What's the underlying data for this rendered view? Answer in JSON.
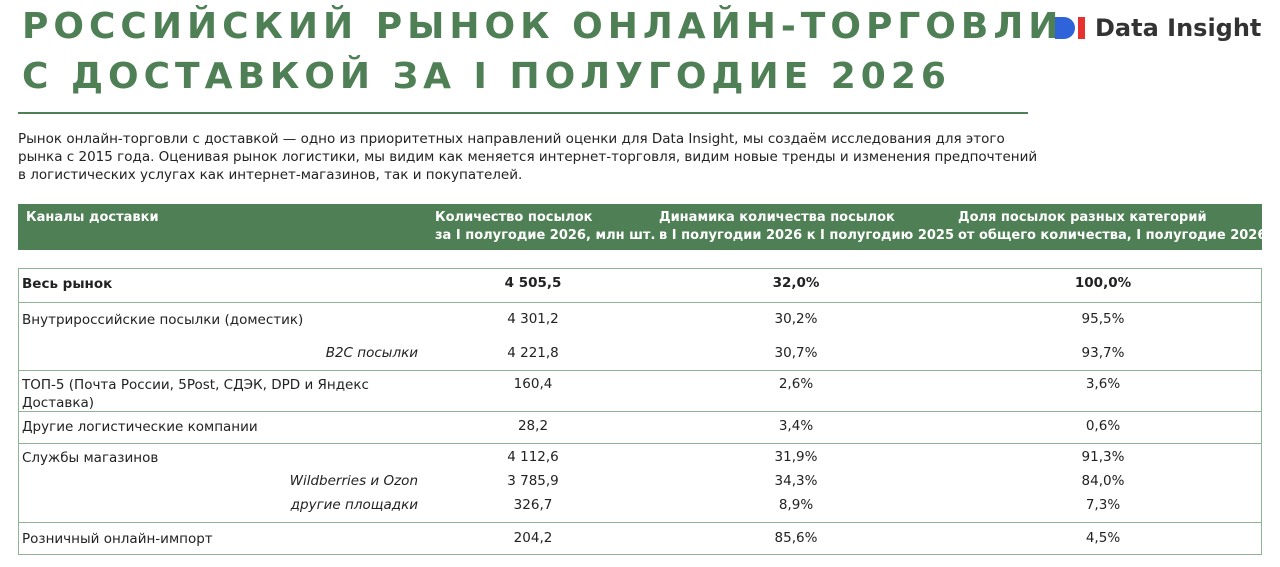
{
  "header": {
    "title": [
      "РОССИЙСКИЙ РЫНОК ОНЛАЙН-ТОРГОВЛИ",
      "С ДОСТАВКОЙ ЗА I ПОЛУГОДИЕ 2026"
    ],
    "logo": "Data Insight"
  },
  "intro": [
    "Рынок онлайн-торговли с доставкой — одно из приоритетных направлений оценки для Data Insight, мы создаём исследования для этого",
    "рынка с 2015 года. Оценивая рынок логистики, мы видим как меняется интернет-торговля, видим новые тренды и изменения предпочтений",
    "в логистических услугах как интернет-магазинов, так и покупателей."
  ],
  "table": {
    "columns": [
      [
        "Каналы доставки"
      ],
      [
        "Количество посылок",
        "за I полугодие 2026, млн шт."
      ],
      [
        "Динамика количества посылок",
        "в I полугодии 2026 к I полугодию 2025"
      ],
      [
        "Доля посылок разных категорий",
        "от общего количества, I полугодие 2026"
      ]
    ],
    "rows": [
      [
        "Весь рынок",
        "4 505,5",
        "32,0%",
        "100,0%"
      ],
      [
        "Внутрироссийские посылки (доместик)",
        "4 301,2",
        "30,2%",
        "95,5%"
      ],
      [
        "B2C посылки",
        "4 221,8",
        "30,7%",
        "93,7%"
      ],
      [
        "ТОП-5 (Почта России, 5Post, СДЭК, DPD и Яндекс Доставка)",
        "160,4",
        "2,6%",
        "3,6%"
      ],
      [
        "Другие логистические компании",
        "28,2",
        "3,4%",
        "0,6%"
      ],
      [
        "Службы магазинов",
        "4 112,6",
        "31,9%",
        "91,3%"
      ],
      [
        "Wildberries и Ozon",
        "3 785,9",
        "34,3%",
        "84,0%"
      ],
      [
        "другие площадки",
        "326,7",
        "8,9%",
        "7,3%"
      ],
      [
        "Розничный онлайн-импорт",
        "204,2",
        "85,6%",
        "4,5%"
      ]
    ]
  }
}
